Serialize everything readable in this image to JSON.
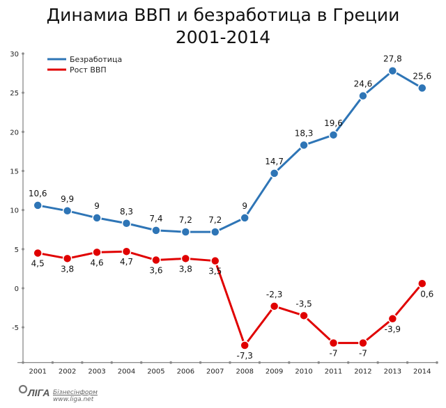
{
  "chart_data": {
    "type": "line",
    "title": "Динамиа ВВП и безработица в Греции 2001-2014",
    "title_lines": [
      "Динамиа ВВП и безработица в Греции",
      "2001-2014"
    ],
    "categories": [
      "2001",
      "2002",
      "2003",
      "2004",
      "2005",
      "2006",
      "2007",
      "2008",
      "2009",
      "2010",
      "2011",
      "2012",
      "2013",
      "2014"
    ],
    "ylim": [
      -9.5,
      30
    ],
    "yticks": [
      -5,
      0,
      5,
      10,
      15,
      20,
      25,
      30
    ],
    "grid": false,
    "legend_position": "top-left",
    "series": [
      {
        "name": "Безработица",
        "color": "#2e75b6",
        "values": [
          10.6,
          9.9,
          9,
          8.3,
          7.4,
          7.2,
          7.2,
          9,
          14.7,
          18.3,
          19.6,
          24.6,
          27.8,
          25.6
        ],
        "labels": [
          "10,6",
          "9,9",
          "9",
          "8,3",
          "7,4",
          "7,2",
          "7,2",
          "9",
          "14,7",
          "18,3",
          "19,6",
          "24,6",
          "27,8",
          "25,6"
        ]
      },
      {
        "name": "Рост ВВП",
        "color": "#e00000",
        "values": [
          4.5,
          3.8,
          4.6,
          4.7,
          3.6,
          3.8,
          3.5,
          -7.3,
          -2.3,
          -3.5,
          -7,
          -7,
          -3.9,
          0.6
        ],
        "labels": [
          "4,5",
          "3,8",
          "4,6",
          "4,7",
          "3,6",
          "3,8",
          "3,5",
          "-7,3",
          "-2,3",
          "-3,5",
          "-7",
          "-7",
          "-3,9",
          "0,6"
        ]
      }
    ]
  },
  "logo": {
    "brand": "ЛIГА",
    "name": "Бізнесінформ",
    "url": "www.liga.net"
  }
}
